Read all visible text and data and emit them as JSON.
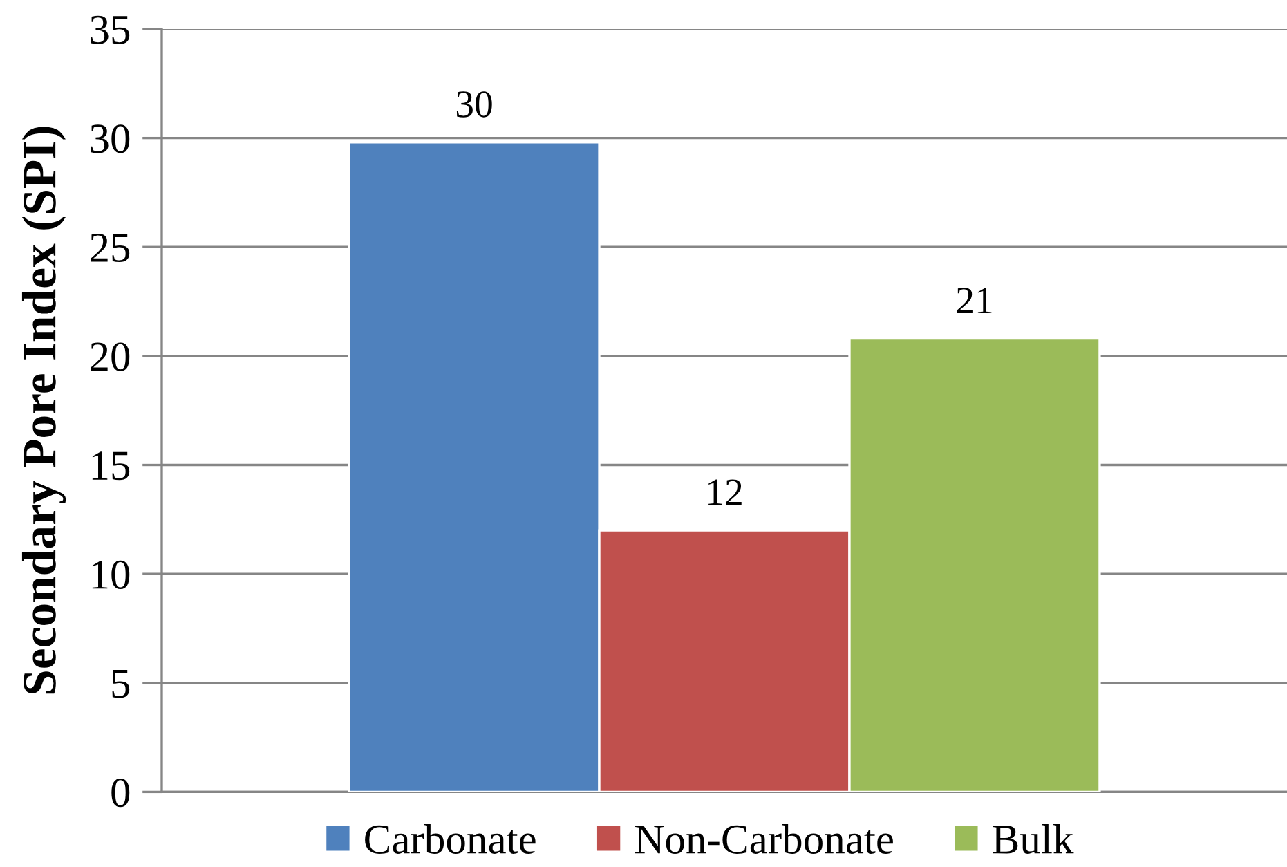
{
  "chart_data": {
    "type": "bar",
    "ylabel": "Secondary Pore Index (SPI)",
    "categories": [
      null
    ],
    "series": [
      {
        "name": "Carbonate",
        "color": "#4f81bd",
        "values": [
          29.8
        ],
        "value_labels": [
          "30"
        ]
      },
      {
        "name": "Non-Carbonate",
        "color": "#c0504d",
        "values": [
          12.0
        ],
        "value_labels": [
          "12"
        ]
      },
      {
        "name": "Bulk",
        "color": "#9bbb59",
        "values": [
          20.8
        ],
        "value_labels": [
          "21"
        ]
      }
    ],
    "ylim": [
      0,
      35
    ],
    "yticks": [
      0,
      5,
      10,
      15,
      20,
      25,
      30,
      35
    ],
    "grid": "y",
    "legend": "bottom",
    "tick_labels": "y"
  }
}
